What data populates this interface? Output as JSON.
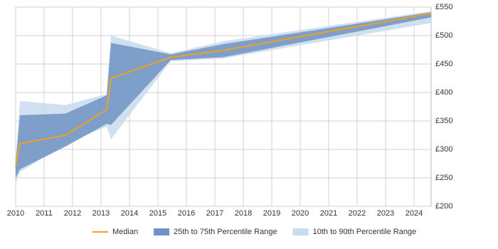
{
  "chart_data": {
    "type": "band-line",
    "x": [
      2010,
      2010.15,
      2011.75,
      2013.2,
      2013.35,
      2015.45,
      2017.3,
      2024.6
    ],
    "series": [
      {
        "name": "Median",
        "color": "#f0a020",
        "values": [
          270,
          310,
          325,
          370,
          425,
          462,
          474,
          539
        ]
      },
      {
        "name": "25th to 75th Percentile Range",
        "color": "#6f93c2",
        "low": [
          250,
          265,
          305,
          345,
          343,
          457,
          462,
          532
        ],
        "high": [
          275,
          360,
          363,
          395,
          487,
          467,
          485,
          541
        ]
      },
      {
        "name": "10th to 90th Percentile Range",
        "color": "#c9dbef",
        "low": [
          240,
          260,
          310,
          340,
          318,
          455,
          460,
          522
        ],
        "high": [
          280,
          385,
          378,
          397,
          500,
          469,
          490,
          543
        ]
      }
    ],
    "xlim": [
      2010,
      2024.6
    ],
    "xticks": [
      2010,
      2011,
      2012,
      2013,
      2014,
      2015,
      2016,
      2017,
      2018,
      2019,
      2020,
      2021,
      2022,
      2023,
      2024
    ],
    "ylim": [
      200,
      550
    ],
    "yticks": [
      {
        "value": 200,
        "label": "£200"
      },
      {
        "value": 250,
        "label": "£250"
      },
      {
        "value": 300,
        "label": "£300"
      },
      {
        "value": 350,
        "label": "£350"
      },
      {
        "value": 400,
        "label": "£400"
      },
      {
        "value": 450,
        "label": "£450"
      },
      {
        "value": 500,
        "label": "£500"
      },
      {
        "value": 550,
        "label": "£550"
      }
    ],
    "grid": true
  }
}
